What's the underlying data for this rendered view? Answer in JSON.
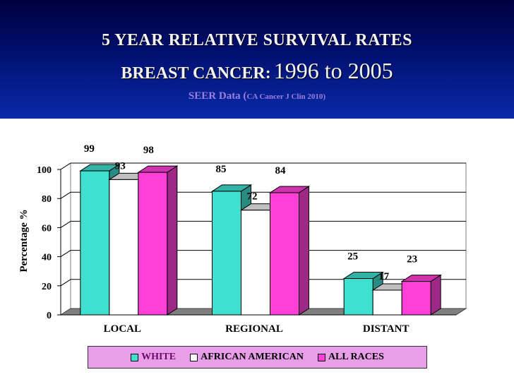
{
  "slide": {
    "title_line1": "5 YEAR RELATIVE SURVIVAL RATES",
    "title_line2a": "BREAST CANCER:",
    "title_line2b": "1996 to 2005",
    "subtitle_a": "SEER Data (",
    "subtitle_b": "CA Cancer J Clin 2010)"
  },
  "chart_data": {
    "type": "bar",
    "title": "5 YEAR RELATIVE SURVIVAL RATES BREAST CANCER: 1996 to 2005",
    "xlabel": "",
    "ylabel": "Percentage %",
    "ylim": [
      0,
      100
    ],
    "yticks": [
      0,
      20,
      40,
      60,
      80,
      100
    ],
    "grid": true,
    "legend_position": "bottom",
    "categories": [
      "LOCAL",
      "REGIONAL",
      "DISTANT"
    ],
    "series": [
      {
        "name": "WHITE",
        "values": [
          99,
          85,
          25
        ],
        "color": "#40e0d0"
      },
      {
        "name": "AFRICAN AMERICAN",
        "values": [
          93,
          72,
          17
        ],
        "color": "#ffffff"
      },
      {
        "name": "ALL RACES",
        "values": [
          98,
          84,
          23
        ],
        "color": "#ff40d8"
      }
    ]
  }
}
